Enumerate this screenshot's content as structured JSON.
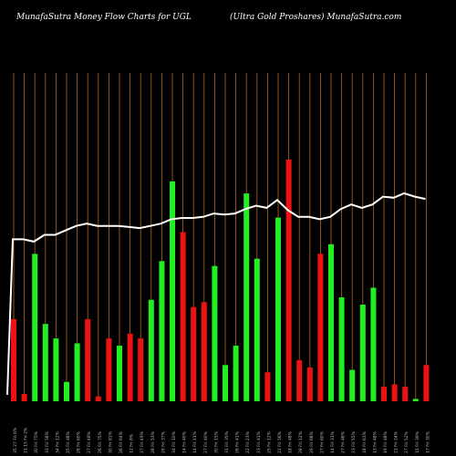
{
  "header": {
    "left_title": "MunafaSutra  Money Flow  Charts for UGL",
    "right_title": "(Ultra  Gold Proshares) MunafaSutra.com"
  },
  "colors": {
    "background": "#000000",
    "grid": "#b5651d",
    "up_bar": "#22ee22",
    "down_bar": "#ee1111",
    "line": "#ffffff",
    "tick_label": "#bbbbbb"
  },
  "chart_data": {
    "type": "bar",
    "title": "MunafaSutra  Money Flow  Charts for UGL",
    "subtitle": "(Ultra  Gold Proshares) MunafaSutra.com",
    "grid": true,
    "series": [
      {
        "kind": "bar",
        "values": [
          0.34,
          0.03,
          0.61,
          0.32,
          0.26,
          0.08,
          0.24,
          0.34,
          0.02,
          0.26,
          0.23,
          0.28,
          0.26,
          0.42,
          0.58,
          0.91,
          0.7,
          0.39,
          0.41,
          0.56,
          0.15,
          0.23,
          0.86,
          0.59,
          0.12,
          0.76,
          1.0,
          0.17,
          0.14,
          0.61,
          0.65,
          0.43,
          0.13,
          0.4,
          0.47,
          0.06,
          0.07,
          0.06,
          0.01,
          0.15
        ],
        "direction": [
          "down",
          "down",
          "up",
          "up",
          "up",
          "up",
          "up",
          "down",
          "down",
          "down",
          "up",
          "down",
          "down",
          "up",
          "up",
          "up",
          "down",
          "down",
          "down",
          "up",
          "up",
          "up",
          "up",
          "up",
          "down",
          "up",
          "down",
          "down",
          "down",
          "down",
          "up",
          "up",
          "up",
          "up",
          "up",
          "down",
          "down",
          "down",
          "up",
          "down"
        ]
      },
      {
        "kind": "line",
        "values": [
          0.72,
          0.72,
          0.71,
          0.74,
          0.74,
          0.76,
          0.78,
          0.79,
          0.78,
          0.78,
          0.78,
          0.775,
          0.77,
          0.78,
          0.79,
          0.81,
          0.815,
          0.815,
          0.82,
          0.835,
          0.83,
          0.835,
          0.855,
          0.87,
          0.86,
          0.895,
          0.85,
          0.82,
          0.82,
          0.81,
          0.82,
          0.855,
          0.875,
          0.86,
          0.875,
          0.91,
          0.905,
          0.925,
          0.91,
          0.9
        ]
      }
    ],
    "ticks": [
      "35 27 Fri 6%",
      "21 15 Fri 2%",
      "30 Fri 75%",
      "33 Fri 58%",
      "34 Fri 12%",
      "25 Fri 48%",
      "28 Fri 60%",
      "27 Fri 48%",
      "26 Fri 75%",
      "30 Fri 81%",
      "26 Fri 64%",
      "12 Fri 8%",
      "27 Fri 49%",
      "28 Fri 53%",
      "29 Fri 37%",
      "34 Fri 10%",
      "14 Fri 40%",
      "14 Fri 11%",
      "27 Fri 40%",
      "30 Fri 15%",
      "31 Fri 35%",
      "26 Fri 41%",
      "22 Fri 23%",
      "23 Fri 41%",
      "25 Fri 12%",
      "22 Fri 56%",
      "18 Fri 48%",
      "28 Fri 12%",
      "29 Fri 68%",
      "27 Fri 60%",
      "14 Fri 31%",
      "27 Fri 48%",
      "23 Fri 55%",
      "18 Fri 61%",
      "13 Fri 48%",
      "19 Fri 48%",
      "21 Fri 24%",
      "27 Fri 52%",
      "15 Fri 39%",
      "17 Fri 30%"
    ]
  }
}
